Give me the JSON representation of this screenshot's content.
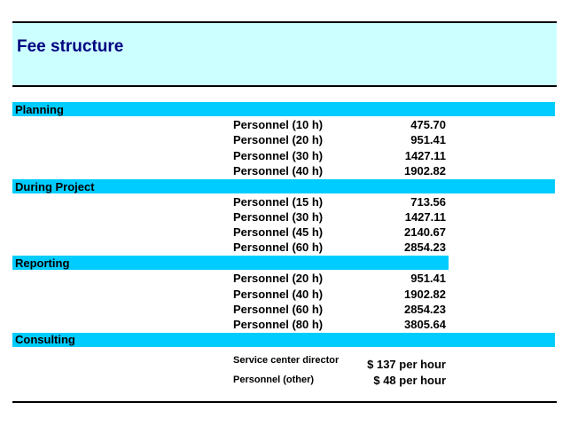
{
  "title": "Fee structure",
  "sections": [
    {
      "label": "Planning",
      "rows": [
        {
          "label": "Personnel (10 h)",
          "value": "475.70"
        },
        {
          "label": "Personnel (20 h)",
          "value": "951.41"
        },
        {
          "label": "Personnel (30 h)",
          "value": "1427.11"
        },
        {
          "label": "Personnel (40 h)",
          "value": "1902.82"
        }
      ]
    },
    {
      "label": "During Project",
      "rows": [
        {
          "label": "Personnel (15 h)",
          "value": "713.56"
        },
        {
          "label": "Personnel (30 h)",
          "value": "1427.11"
        },
        {
          "label": "Personnel (45 h)",
          "value": "2140.67"
        },
        {
          "label": "Personnel (60 h)",
          "value": "2854.23"
        }
      ]
    },
    {
      "label": "Reporting",
      "rows": [
        {
          "label": "Personnel (20 h)",
          "value": "951.41"
        },
        {
          "label": "Personnel (40 h)",
          "value": "1902.82"
        },
        {
          "label": "Personnel (60 h)",
          "value": "2854.23"
        },
        {
          "label": "Personnel (80 h)",
          "value": "3805.64"
        }
      ]
    },
    {
      "label": "Consulting",
      "rows": [
        {
          "label": "Service center director",
          "value": "$ 137 per hour"
        },
        {
          "label": "Personnel (other)",
          "value": "$ 48 per hour"
        }
      ]
    }
  ],
  "colors": {
    "title_band": "#ccffff",
    "section_band": "#00ccff",
    "title_text": "#000080"
  }
}
